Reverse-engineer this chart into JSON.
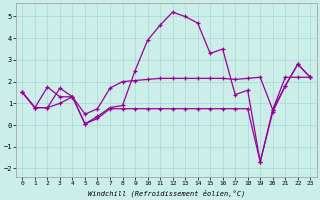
{
  "xlabel": "Windchill (Refroidissement éolien,°C)",
  "bg_color": "#cceee8",
  "line_color": "#990099",
  "xlim": [
    -0.5,
    23.5
  ],
  "ylim": [
    -2.4,
    5.6
  ],
  "yticks": [
    -2,
    -1,
    0,
    1,
    2,
    3,
    4,
    5
  ],
  "xticks": [
    0,
    1,
    2,
    3,
    4,
    5,
    6,
    7,
    8,
    9,
    10,
    11,
    12,
    13,
    14,
    15,
    16,
    17,
    18,
    19,
    20,
    21,
    22,
    23
  ],
  "series1_x": [
    0,
    1,
    2,
    3,
    4,
    5,
    6,
    7,
    8,
    9,
    10,
    11,
    12,
    13,
    14,
    15,
    16,
    17,
    18,
    19,
    20,
    21,
    22,
    23
  ],
  "series1_y": [
    1.5,
    0.8,
    0.8,
    1.7,
    1.3,
    0.05,
    0.4,
    0.8,
    0.9,
    2.5,
    3.9,
    4.6,
    5.2,
    5.0,
    4.7,
    3.3,
    3.5,
    1.4,
    1.6,
    -1.7,
    0.6,
    1.8,
    2.8,
    2.2
  ],
  "series2_x": [
    0,
    1,
    2,
    3,
    4,
    5,
    6,
    7,
    8,
    9,
    10,
    11,
    12,
    13,
    14,
    15,
    16,
    17,
    18,
    19,
    20,
    21,
    22,
    23
  ],
  "series2_y": [
    1.5,
    0.8,
    1.75,
    1.3,
    1.3,
    0.5,
    0.75,
    1.7,
    2.0,
    2.05,
    2.1,
    2.15,
    2.15,
    2.15,
    2.15,
    2.15,
    2.15,
    2.1,
    2.15,
    2.2,
    0.7,
    2.2,
    2.2,
    2.2
  ],
  "series3_x": [
    0,
    1,
    2,
    3,
    4,
    5,
    6,
    7,
    8,
    9,
    10,
    11,
    12,
    13,
    14,
    15,
    16,
    17,
    18,
    19,
    20,
    21,
    22,
    23
  ],
  "series3_y": [
    1.5,
    0.8,
    0.8,
    1.0,
    1.3,
    0.05,
    0.3,
    0.75,
    0.75,
    0.75,
    0.75,
    0.75,
    0.75,
    0.75,
    0.75,
    0.75,
    0.75,
    0.75,
    0.75,
    -1.7,
    0.7,
    1.8,
    2.8,
    2.2
  ],
  "grid_color": "#aad8d3",
  "spine_color": "#999999"
}
